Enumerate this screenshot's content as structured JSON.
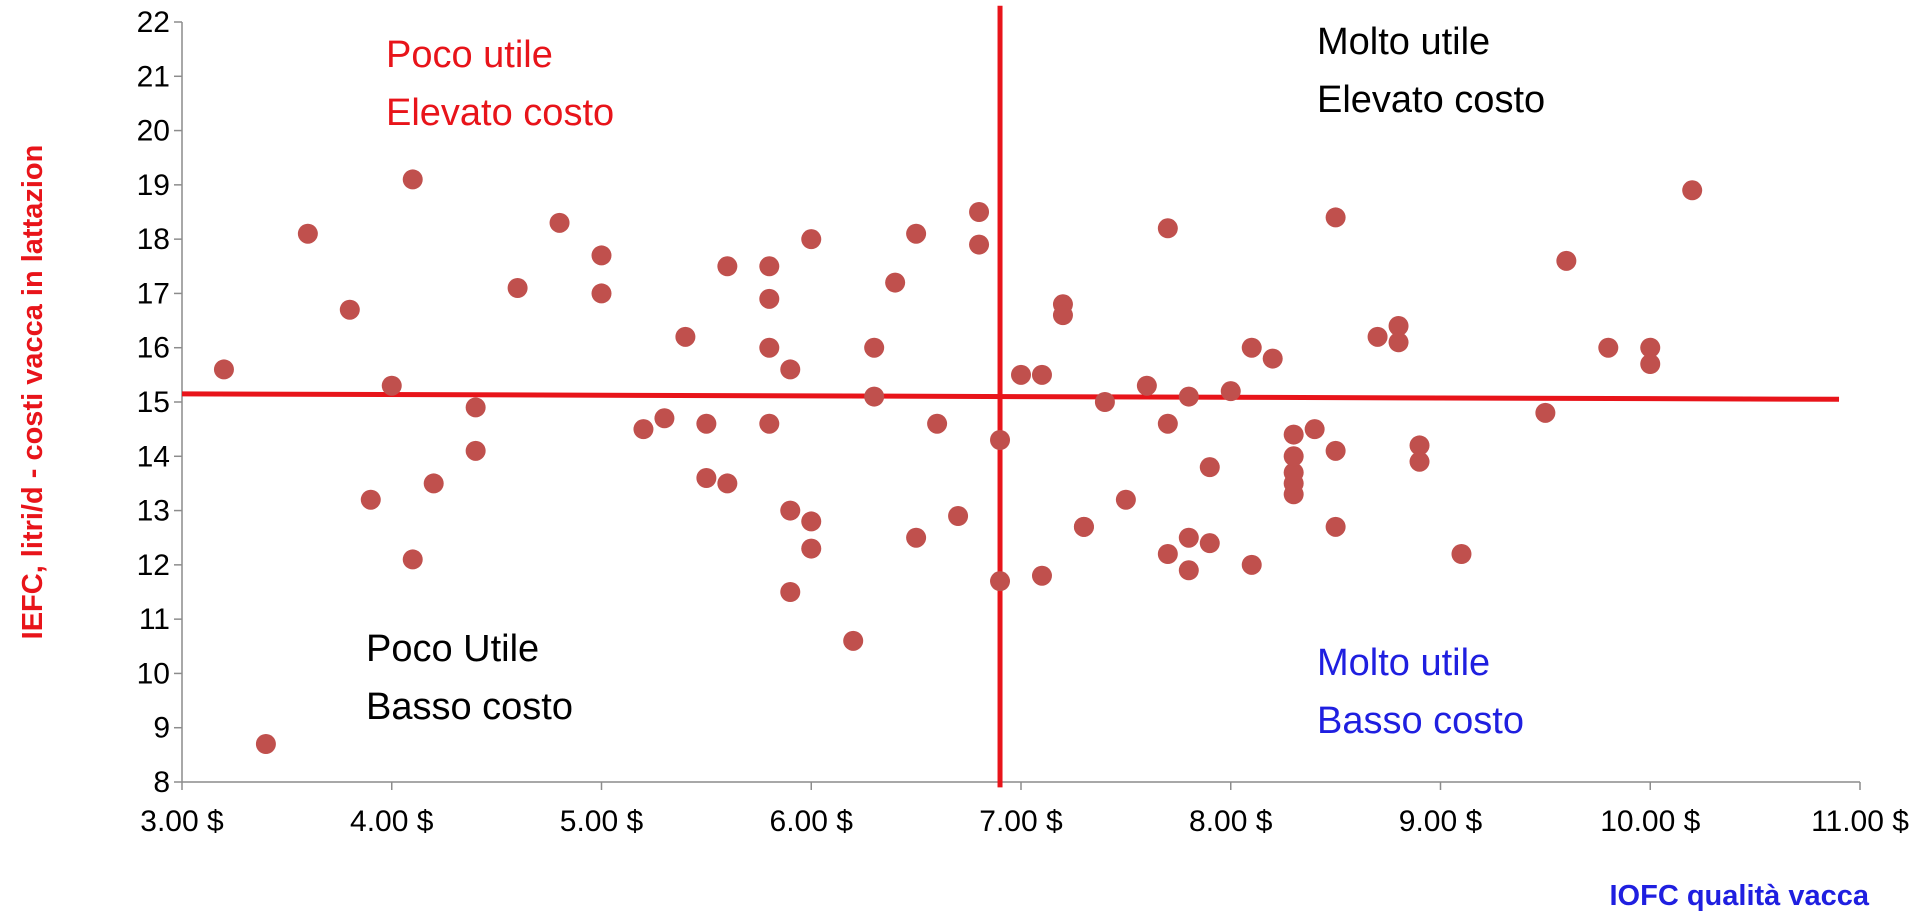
{
  "chart_data": {
    "type": "scatter",
    "title": "",
    "xlabel": "IOFC qualità vacca",
    "ylabel": "IEFC, litri/d - costi vacca in lattazion",
    "xlim": [
      3,
      11
    ],
    "ylim": [
      8,
      22
    ],
    "x_ticks": [
      "3.00 $",
      "4.00 $",
      "5.00 $",
      "6.00 $",
      "7.00 $",
      "8.00 $",
      "9.00 $",
      "10.00 $",
      "11.00 $"
    ],
    "y_ticks": [
      "8",
      "9",
      "10",
      "11",
      "12",
      "13",
      "14",
      "15",
      "16",
      "17",
      "18",
      "19",
      "20",
      "21",
      "22"
    ],
    "grid": false,
    "legend": "none",
    "point_color": "#c0504d",
    "line_color": "#e8141a",
    "reference_lines": {
      "vertical": {
        "x": 6.9,
        "y_from": 7.9,
        "y_to": 22.3
      },
      "horizontal": {
        "x_from": 3.0,
        "x_to": 10.9,
        "y_start": 15.15,
        "y_end": 15.05
      }
    },
    "quadrant_labels": [
      {
        "id": "top-left",
        "lines": [
          "Poco utile",
          "Elevato costo"
        ],
        "color": "#e8141a"
      },
      {
        "id": "top-right",
        "lines": [
          "Molto utile",
          "Elevato costo"
        ],
        "color": "#000000"
      },
      {
        "id": "bottom-left",
        "lines": [
          "Poco Utile",
          "Basso costo"
        ],
        "color": "#000000"
      },
      {
        "id": "bottom-right",
        "lines": [
          "Molto utile",
          "Basso costo"
        ],
        "color": "#1f1fe0"
      }
    ],
    "points": [
      [
        3.2,
        15.6
      ],
      [
        3.4,
        8.7
      ],
      [
        3.6,
        18.1
      ],
      [
        3.8,
        16.7
      ],
      [
        3.9,
        13.2
      ],
      [
        4.0,
        15.3
      ],
      [
        4.1,
        12.1
      ],
      [
        4.1,
        19.1
      ],
      [
        4.2,
        13.5
      ],
      [
        4.4,
        14.1
      ],
      [
        4.4,
        14.9
      ],
      [
        4.6,
        17.1
      ],
      [
        4.8,
        18.3
      ],
      [
        5.0,
        17.7
      ],
      [
        5.0,
        17.0
      ],
      [
        5.2,
        14.5
      ],
      [
        5.3,
        14.7
      ],
      [
        5.4,
        16.2
      ],
      [
        5.5,
        13.6
      ],
      [
        5.5,
        14.6
      ],
      [
        5.6,
        17.5
      ],
      [
        5.6,
        13.5
      ],
      [
        5.8,
        16.0
      ],
      [
        5.8,
        14.6
      ],
      [
        5.8,
        16.9
      ],
      [
        5.8,
        17.5
      ],
      [
        5.9,
        15.6
      ],
      [
        5.9,
        13.0
      ],
      [
        5.9,
        11.5
      ],
      [
        6.0,
        18.0
      ],
      [
        6.0,
        12.8
      ],
      [
        6.0,
        12.3
      ],
      [
        6.2,
        10.6
      ],
      [
        6.3,
        15.1
      ],
      [
        6.3,
        16.0
      ],
      [
        6.4,
        17.2
      ],
      [
        6.5,
        18.1
      ],
      [
        6.5,
        12.5
      ],
      [
        6.6,
        14.6
      ],
      [
        6.7,
        12.9
      ],
      [
        6.8,
        18.5
      ],
      [
        6.8,
        17.9
      ],
      [
        6.9,
        14.3
      ],
      [
        6.9,
        11.7
      ],
      [
        7.0,
        15.5
      ],
      [
        7.1,
        15.5
      ],
      [
        7.1,
        11.8
      ],
      [
        7.2,
        16.8
      ],
      [
        7.2,
        16.6
      ],
      [
        7.3,
        12.7
      ],
      [
        7.3,
        12.7
      ],
      [
        7.4,
        15.0
      ],
      [
        7.5,
        13.2
      ],
      [
        7.6,
        15.3
      ],
      [
        7.7,
        18.2
      ],
      [
        7.7,
        12.2
      ],
      [
        7.7,
        14.6
      ],
      [
        7.8,
        15.1
      ],
      [
        7.8,
        11.9
      ],
      [
        7.8,
        12.5
      ],
      [
        7.9,
        13.8
      ],
      [
        7.9,
        12.4
      ],
      [
        8.0,
        15.2
      ],
      [
        8.1,
        16.0
      ],
      [
        8.1,
        12.0
      ],
      [
        8.2,
        15.8
      ],
      [
        8.3,
        14.4
      ],
      [
        8.3,
        13.7
      ],
      [
        8.3,
        14.0
      ],
      [
        8.3,
        13.3
      ],
      [
        8.3,
        13.5
      ],
      [
        8.4,
        14.5
      ],
      [
        8.5,
        18.4
      ],
      [
        8.5,
        14.1
      ],
      [
        8.5,
        12.7
      ],
      [
        8.7,
        16.2
      ],
      [
        8.8,
        16.4
      ],
      [
        8.8,
        16.1
      ],
      [
        8.9,
        14.2
      ],
      [
        8.9,
        13.9
      ],
      [
        9.1,
        12.2
      ],
      [
        9.5,
        14.8
      ],
      [
        9.6,
        17.6
      ],
      [
        9.8,
        16.0
      ],
      [
        10.0,
        16.0
      ],
      [
        10.0,
        15.7
      ],
      [
        10.2,
        18.9
      ]
    ]
  }
}
